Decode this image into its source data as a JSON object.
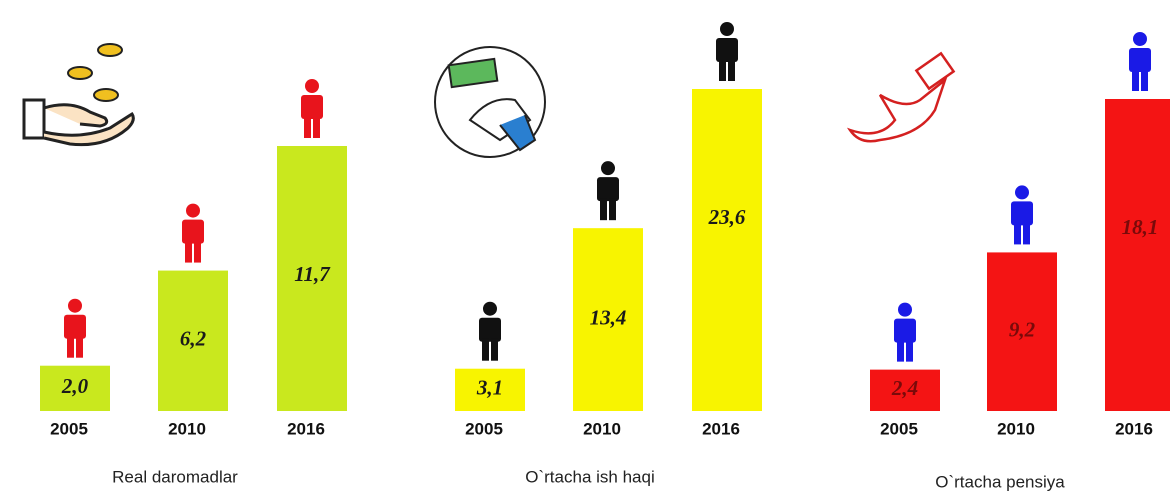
{
  "chart_data": [
    {
      "type": "bar",
      "title": "Real daromadlar",
      "categories": [
        "2005",
        "2010",
        "2016"
      ],
      "values": [
        2.0,
        6.2,
        11.7
      ],
      "value_labels": [
        "2,0",
        "6,2",
        "11,7"
      ],
      "color": "#c9e81e",
      "icon_color": "#e8141c",
      "label_color": "#1a1a1a"
    },
    {
      "type": "bar",
      "title": "O`rtacha ish haqi",
      "categories": [
        "2005",
        "2010",
        "2016"
      ],
      "values": [
        3.1,
        13.4,
        23.6
      ],
      "value_labels": [
        "3,1",
        "13,4",
        "23,6"
      ],
      "color": "#f8f400",
      "icon_color": "#111111",
      "label_color": "#1a1a1a"
    },
    {
      "type": "bar",
      "title": "O`rtacha pensiya",
      "categories": [
        "2005",
        "2010",
        "2016"
      ],
      "values": [
        2.4,
        9.2,
        18.1
      ],
      "value_labels": [
        "2,4",
        "9,2",
        "18,1"
      ],
      "color": "#f41414",
      "icon_color": "#1a1ae6",
      "label_color": "#7a0a0a"
    }
  ]
}
